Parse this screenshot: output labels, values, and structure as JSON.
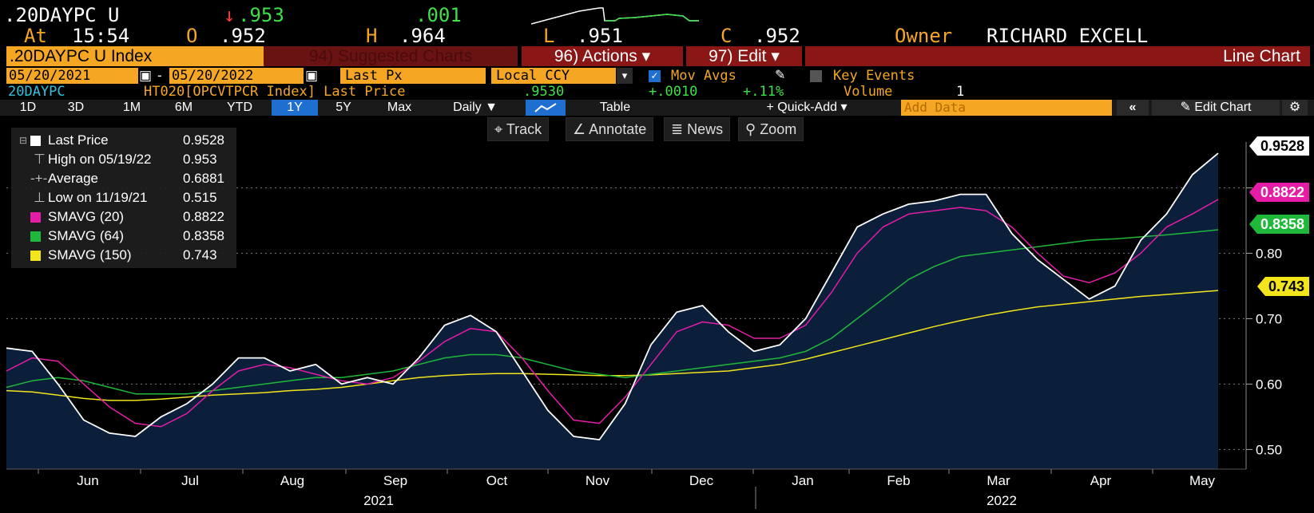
{
  "header": {
    "ticker": ".20DAYPC U",
    "change_arrow": "↓",
    "last": ".953",
    "change": ".001",
    "at_label": "At",
    "time": "15:54",
    "open_label": "O",
    "open": ".952",
    "high_label": "H",
    "high": ".964",
    "low_label": "L",
    "low": ".951",
    "close_label": "C",
    "close": ".952",
    "owner_label": "Owner",
    "owner": "RICHARD EXCELL"
  },
  "menubar": {
    "security": ".20DAYPC U Index",
    "suggested": "94) Suggested Charts",
    "actions": "96) Actions ▾",
    "edit": "97) Edit ▾",
    "chart_type": "Line Chart"
  },
  "params": {
    "start_date": "05/20/2021",
    "dash": "-",
    "end_date": "05/20/2022",
    "field": "Last Px",
    "currency": "Local CCY",
    "mov_avgs": "Mov Avgs",
    "key_events": "Key Events"
  },
  "info": {
    "short": "20DAYPC",
    "index": "HT020[OPCVTPCR Index] Last Price",
    "last": ".9530",
    "chg": "+.0010",
    "pct": "+.11%",
    "volume_label": "Volume",
    "volume": "1"
  },
  "tabs": [
    "1D",
    "3D",
    "1M",
    "6M",
    "YTD",
    "1Y",
    "5Y",
    "Max"
  ],
  "active_tab": "1Y",
  "toolbar": {
    "freq": "Daily ▼",
    "table": "Table",
    "quick_add": "+ Quick-Add ▾",
    "add_data_placeholder": "Add Data",
    "collapse": "«",
    "edit_chart": "Edit Chart",
    "settings_icon": "gear-icon"
  },
  "chart_tools": [
    "Track",
    "Annotate",
    "News",
    "Zoom"
  ],
  "legend": [
    {
      "label": "Last Price",
      "value": "0.9528",
      "color": "#ffffff"
    },
    {
      "label": "High on 05/19/22",
      "value": "0.953",
      "color": ""
    },
    {
      "label": "Average",
      "value": "0.6881",
      "color": ""
    },
    {
      "label": "Low on 11/19/21",
      "value": "0.515",
      "color": ""
    },
    {
      "label": "SMAVG (20)",
      "value": "0.8822",
      "color": "#e41ca6"
    },
    {
      "label": "SMAVG (64)",
      "value": "0.8358",
      "color": "#1fb83a"
    },
    {
      "label": "SMAVG (150)",
      "value": "0.743",
      "color": "#f2e51b"
    }
  ],
  "axis_tags": [
    {
      "value": "0.9528",
      "bg": "#ffffff",
      "fg": "#000000"
    },
    {
      "value": "0.8822",
      "bg": "#e41ca6",
      "fg": "#ffffff"
    },
    {
      "value": "0.8358",
      "bg": "#1fb83a",
      "fg": "#ffffff"
    },
    {
      "value": "0.743",
      "bg": "#f2e51b",
      "fg": "#000000"
    }
  ],
  "chart_data": {
    "type": "line",
    "ylim": [
      0.47,
      0.97
    ],
    "yticks": [
      "0.50",
      "0.60",
      "0.70",
      "0.80",
      "0.90"
    ],
    "months": [
      "Jun",
      "Jul",
      "Aug",
      "Sep",
      "Oct",
      "Nov",
      "Dec",
      "Jan",
      "Feb",
      "Mar",
      "Apr",
      "May"
    ],
    "years": [
      "2021",
      "2022"
    ],
    "series": [
      {
        "name": "Last Price",
        "color": "#ffffff",
        "values": [
          0.655,
          0.65,
          0.6,
          0.545,
          0.525,
          0.52,
          0.55,
          0.57,
          0.6,
          0.64,
          0.64,
          0.62,
          0.63,
          0.6,
          0.61,
          0.6,
          0.64,
          0.69,
          0.705,
          0.68,
          0.62,
          0.56,
          0.52,
          0.515,
          0.57,
          0.66,
          0.71,
          0.72,
          0.68,
          0.65,
          0.66,
          0.7,
          0.77,
          0.84,
          0.86,
          0.875,
          0.88,
          0.89,
          0.89,
          0.83,
          0.79,
          0.76,
          0.73,
          0.75,
          0.82,
          0.86,
          0.92,
          0.9528
        ]
      },
      {
        "name": "SMAVG (20)",
        "color": "#e41ca6",
        "values": [
          0.62,
          0.64,
          0.635,
          0.6,
          0.565,
          0.54,
          0.535,
          0.555,
          0.59,
          0.62,
          0.63,
          0.625,
          0.615,
          0.605,
          0.6,
          0.61,
          0.635,
          0.665,
          0.685,
          0.68,
          0.64,
          0.59,
          0.545,
          0.54,
          0.58,
          0.63,
          0.68,
          0.695,
          0.69,
          0.67,
          0.67,
          0.69,
          0.74,
          0.8,
          0.84,
          0.86,
          0.865,
          0.87,
          0.865,
          0.84,
          0.8,
          0.765,
          0.755,
          0.77,
          0.8,
          0.84,
          0.86,
          0.8822
        ]
      },
      {
        "name": "SMAVG (64)",
        "color": "#1fb83a",
        "values": [
          0.595,
          0.605,
          0.61,
          0.605,
          0.595,
          0.585,
          0.585,
          0.585,
          0.59,
          0.595,
          0.6,
          0.605,
          0.61,
          0.61,
          0.615,
          0.62,
          0.63,
          0.64,
          0.645,
          0.645,
          0.64,
          0.63,
          0.62,
          0.615,
          0.61,
          0.615,
          0.62,
          0.625,
          0.63,
          0.635,
          0.64,
          0.65,
          0.67,
          0.7,
          0.73,
          0.76,
          0.78,
          0.795,
          0.8,
          0.805,
          0.81,
          0.815,
          0.82,
          0.822,
          0.825,
          0.828,
          0.832,
          0.8358
        ]
      },
      {
        "name": "SMAVG (150)",
        "color": "#f2e51b",
        "values": [
          0.59,
          0.588,
          0.583,
          0.578,
          0.575,
          0.575,
          0.577,
          0.58,
          0.583,
          0.585,
          0.587,
          0.59,
          0.592,
          0.595,
          0.6,
          0.605,
          0.61,
          0.613,
          0.615,
          0.616,
          0.616,
          0.615,
          0.614,
          0.613,
          0.613,
          0.614,
          0.616,
          0.618,
          0.62,
          0.625,
          0.63,
          0.638,
          0.648,
          0.658,
          0.668,
          0.678,
          0.688,
          0.697,
          0.705,
          0.712,
          0.718,
          0.722,
          0.726,
          0.73,
          0.734,
          0.737,
          0.74,
          0.743
        ]
      }
    ]
  }
}
